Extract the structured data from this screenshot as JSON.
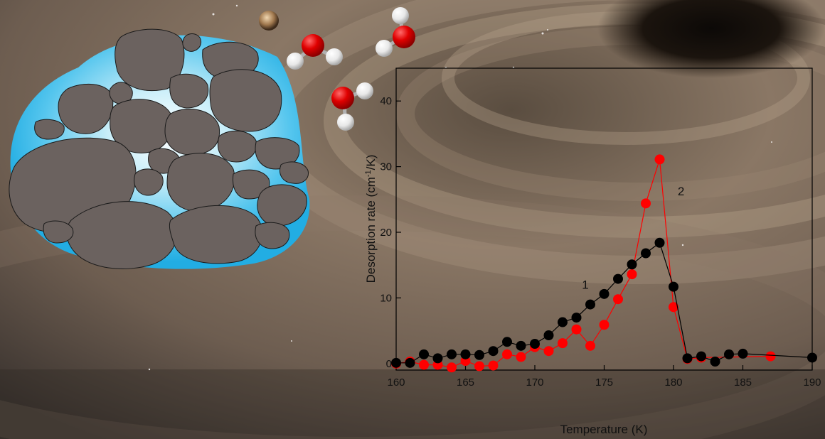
{
  "chart_data": {
    "type": "line",
    "xlabel": "Temperature (K)",
    "ylabel_main": "Desorption rate (cm",
    "ylabel_sup": "-1",
    "ylabel_tail": "/K)",
    "xlim": [
      160,
      190
    ],
    "ylim": [
      -1,
      45
    ],
    "xticks": [
      160,
      165,
      170,
      175,
      180,
      185,
      190
    ],
    "yticks": [
      0,
      10,
      20,
      30,
      40
    ],
    "series": [
      {
        "label": "1",
        "color": "#000000",
        "x": [
          160,
          161,
          162,
          163,
          164,
          165,
          166,
          167,
          168,
          169,
          170,
          171,
          172,
          173,
          174,
          175,
          176,
          177,
          178,
          179,
          180,
          181,
          182,
          183,
          184,
          185,
          190
        ],
        "y": [
          0.1,
          0.1,
          1.4,
          0.8,
          1.4,
          1.4,
          1.3,
          1.9,
          3.3,
          2.7,
          3.0,
          4.3,
          6.3,
          7.0,
          9.0,
          10.6,
          12.9,
          15.1,
          16.8,
          18.4,
          11.7,
          0.8,
          1.1,
          0.3,
          1.4,
          1.5,
          0.9
        ],
        "label_at": [
          173.4,
          11.4
        ]
      },
      {
        "label": "2",
        "color": "#ff0000",
        "x": [
          160,
          161,
          162,
          163,
          164,
          165,
          166,
          167,
          168,
          169,
          170,
          171,
          172,
          173,
          174,
          175,
          176,
          177,
          178,
          179,
          180,
          181,
          182,
          187
        ],
        "y": [
          0.0,
          0.3,
          -0.2,
          -0.2,
          -0.6,
          0.4,
          -0.4,
          -0.3,
          1.4,
          1.0,
          2.5,
          1.9,
          3.1,
          5.2,
          2.7,
          5.9,
          9.8,
          13.6,
          24.4,
          31.1,
          8.6,
          0.7,
          0.9,
          1.1
        ],
        "label_at": [
          180.3,
          25.6
        ]
      }
    ],
    "colors": {
      "ice": "#2ab4e8",
      "ice_light": "#e9f8fd",
      "grain": "#6b625f",
      "oxygen": "#e00000",
      "hydrogen": "#f4f4f4",
      "background": "#6e5f52"
    }
  }
}
